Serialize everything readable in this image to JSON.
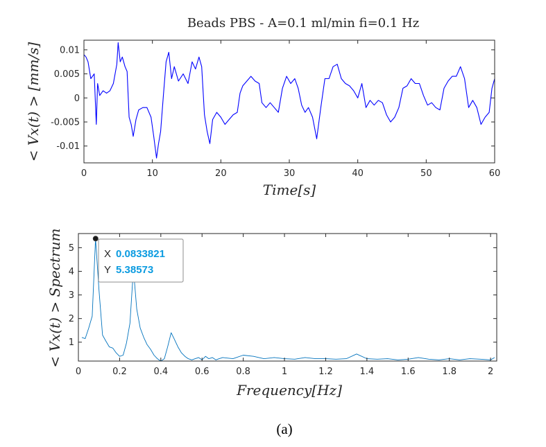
{
  "caption": "(a)",
  "chart_data": [
    {
      "type": "line",
      "title": "Beads PBS - A=0.1 ml/min fi=0.1 Hz",
      "xlabel": "Time[s]",
      "ylabel": "< Vx(t) > [mm/s]",
      "xlim": [
        0,
        60
      ],
      "ylim": [
        -0.0135,
        0.012
      ],
      "xticks": [
        0,
        10,
        20,
        30,
        40,
        50,
        60
      ],
      "xtick_labels": [
        "0",
        "10",
        "20",
        "30",
        "40",
        "50",
        "60"
      ],
      "yticks": [
        0.01,
        0.005,
        0,
        -0.005,
        -0.01
      ],
      "ytick_labels": [
        "0.01",
        "0.005",
        "0",
        "-0.005",
        "-0.01"
      ],
      "grid": false,
      "color": "#0000ff",
      "series": [
        {
          "x": [
            0,
            0.3,
            0.6,
            1.0,
            1.5,
            1.8,
            2.0,
            2.3,
            2.8,
            3.3,
            3.8,
            4.3,
            4.8,
            5.0,
            5.3,
            5.6,
            6.0,
            6.3,
            6.6,
            6.9,
            7.2,
            7.6,
            8.0,
            8.6,
            9.2,
            9.8,
            10.2,
            10.6,
            10.9,
            11.2,
            11.6,
            12.0,
            12.4,
            12.8,
            13.2,
            13.8,
            14.5,
            15.2,
            15.8,
            16.3,
            16.8,
            17.2,
            17.6,
            18.0,
            18.4,
            18.8,
            19.4,
            20.0,
            20.6,
            21.2,
            21.8,
            22.4,
            22.8,
            23.2,
            23.8,
            24.4,
            25.0,
            25.6,
            26.0,
            26.6,
            27.2,
            27.8,
            28.4,
            29.0,
            29.6,
            30.2,
            30.8,
            31.3,
            31.8,
            32.3,
            32.8,
            33.4,
            34.0,
            34.6,
            35.2,
            35.8,
            36.4,
            37.0,
            37.6,
            38.2,
            38.8,
            39.4,
            40.0,
            40.6,
            41.2,
            41.8,
            42.4,
            43.0,
            43.6,
            44.2,
            44.8,
            45.4,
            46.0,
            46.6,
            47.2,
            47.8,
            48.4,
            49.0,
            49.6,
            50.2,
            50.8,
            51.4,
            52.0,
            52.6,
            53.2,
            53.8,
            54.4,
            55.0,
            55.6,
            56.2,
            56.8,
            57.4,
            58.0,
            58.6,
            59.2,
            59.6,
            60.0
          ],
          "y": [
            0.009,
            0.0085,
            0.0075,
            0.004,
            0.005,
            -0.0055,
            0.003,
            0.0005,
            0.0015,
            0.001,
            0.0015,
            0.003,
            0.007,
            0.0115,
            0.0075,
            0.0085,
            0.0065,
            0.0055,
            -0.004,
            -0.0055,
            -0.008,
            -0.0045,
            -0.0025,
            -0.002,
            -0.002,
            -0.004,
            -0.008,
            -0.0125,
            -0.0095,
            -0.007,
            0.0005,
            0.0075,
            0.0095,
            0.004,
            0.0065,
            0.0035,
            0.005,
            0.003,
            0.0075,
            0.006,
            0.0085,
            0.0065,
            -0.0035,
            -0.007,
            -0.0095,
            -0.0045,
            -0.003,
            -0.004,
            -0.0055,
            -0.0045,
            -0.0035,
            -0.003,
            0.001,
            0.0025,
            0.0035,
            0.0045,
            0.0035,
            0.003,
            -0.001,
            -0.002,
            -0.001,
            -0.002,
            -0.003,
            0.002,
            0.0045,
            0.003,
            0.004,
            0.002,
            -0.0015,
            -0.003,
            -0.002,
            -0.004,
            -0.0085,
            -0.002,
            0.004,
            0.004,
            0.0065,
            0.007,
            0.004,
            0.003,
            0.0025,
            0.0015,
            0.0,
            0.003,
            -0.002,
            -0.0005,
            -0.0015,
            -0.0005,
            -0.001,
            -0.0035,
            -0.005,
            -0.004,
            -0.002,
            0.002,
            0.0025,
            0.004,
            0.003,
            0.003,
            0.0005,
            -0.0015,
            -0.001,
            -0.002,
            -0.0025,
            0.002,
            0.0035,
            0.0045,
            0.0045,
            0.0065,
            0.004,
            -0.002,
            -0.0005,
            -0.002,
            -0.0055,
            -0.004,
            -0.003,
            0.002,
            0.004
          ]
        }
      ]
    },
    {
      "type": "line",
      "title": "",
      "xlabel": "Frequency[Hz]",
      "ylabel": "< Vx(t) > Spectrum",
      "xlim": [
        0,
        2.03
      ],
      "ylim": [
        0.2,
        5.6
      ],
      "xticks": [
        0,
        0.2,
        0.4,
        0.6,
        0.8,
        1,
        1.2,
        1.4,
        1.6,
        1.8,
        2
      ],
      "xtick_labels": [
        "0",
        "0.2",
        "0.4",
        "0.6",
        "0.8",
        "1",
        "1.2",
        "1.4",
        "1.6",
        "1.8",
        "2"
      ],
      "yticks": [
        1,
        2,
        3,
        4,
        5
      ],
      "ytick_labels": [
        "1",
        "2",
        "3",
        "4",
        "5"
      ],
      "grid": false,
      "color": "#0072bd",
      "series": [
        {
          "x": [
            0.017,
            0.033,
            0.05,
            0.067,
            0.083,
            0.1,
            0.117,
            0.133,
            0.15,
            0.167,
            0.183,
            0.2,
            0.217,
            0.233,
            0.25,
            0.267,
            0.283,
            0.3,
            0.317,
            0.333,
            0.35,
            0.367,
            0.383,
            0.4,
            0.417,
            0.433,
            0.45,
            0.467,
            0.483,
            0.5,
            0.517,
            0.533,
            0.55,
            0.567,
            0.583,
            0.6,
            0.617,
            0.633,
            0.65,
            0.667,
            0.683,
            0.7,
            0.75,
            0.8,
            0.85,
            0.9,
            0.95,
            1.0,
            1.05,
            1.1,
            1.15,
            1.2,
            1.25,
            1.3,
            1.35,
            1.4,
            1.45,
            1.5,
            1.55,
            1.6,
            1.65,
            1.7,
            1.75,
            1.8,
            1.85,
            1.9,
            1.95,
            2.0,
            2.02
          ],
          "y": [
            1.2,
            1.15,
            1.6,
            2.1,
            5.38573,
            3.2,
            1.3,
            1.05,
            0.8,
            0.75,
            0.55,
            0.4,
            0.45,
            0.95,
            1.8,
            4.1,
            2.4,
            1.6,
            1.2,
            0.9,
            0.7,
            0.45,
            0.3,
            0.2,
            0.3,
            0.8,
            1.4,
            1.1,
            0.8,
            0.55,
            0.4,
            0.3,
            0.25,
            0.3,
            0.35,
            0.25,
            0.4,
            0.3,
            0.35,
            0.25,
            0.3,
            0.35,
            0.3,
            0.45,
            0.4,
            0.3,
            0.35,
            0.3,
            0.28,
            0.35,
            0.3,
            0.3,
            0.28,
            0.3,
            0.5,
            0.3,
            0.28,
            0.3,
            0.25,
            0.28,
            0.35,
            0.28,
            0.25,
            0.3,
            0.25,
            0.3,
            0.28,
            0.25,
            0.35
          ]
        }
      ],
      "datatip": {
        "x_key": "X",
        "x_value": "0.0833821",
        "y_key": "Y",
        "y_value": "5.38573",
        "x": 0.0833821,
        "y": 5.38573
      }
    }
  ]
}
